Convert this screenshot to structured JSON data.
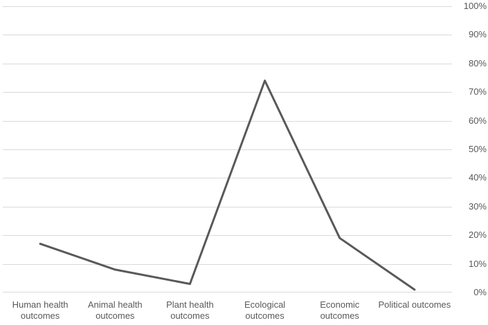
{
  "chart_data": {
    "type": "line",
    "title": "",
    "xlabel": "",
    "ylabel": "",
    "categories": [
      "Human health outcomes",
      "Animal health outcomes",
      "Plant health outcomes",
      "Ecological outcomes",
      "Economic outcomes",
      "Political outcomes"
    ],
    "values": [
      17,
      8,
      3,
      74,
      19,
      1
    ],
    "value_unit": "%",
    "ylim": [
      0,
      100
    ],
    "y_ticks": [
      "0%",
      "10%",
      "20%",
      "30%",
      "40%",
      "50%",
      "60%",
      "70%",
      "80%",
      "90%",
      "100%"
    ],
    "y_axis_side": "right",
    "grid": true,
    "legend": "none",
    "line_color": "#595959",
    "gridline_color": "#d9d9d9",
    "text_color": "#595959",
    "background_color": "#ffffff"
  }
}
